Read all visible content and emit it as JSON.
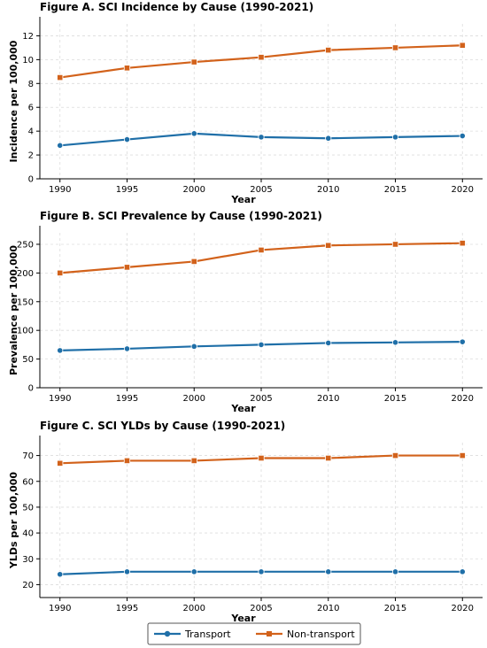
{
  "chart_data": [
    {
      "type": "line",
      "title": "Figure   A. SCI Incidence by Cause (1990-2021)",
      "xlabel": "Year",
      "ylabel": "Incidence per 100,000",
      "x": [
        1990,
        1995,
        2000,
        2005,
        2010,
        2015,
        2020
      ],
      "xticks": [
        "1990",
        "1995",
        "2000",
        "2005",
        "2010",
        "2015",
        "2020"
      ],
      "yticks": [
        "0",
        "2",
        "4",
        "6",
        "8",
        "10",
        "12"
      ],
      "ylim": [
        0,
        13
      ],
      "grid": true,
      "series": [
        {
          "name": "Transport",
          "values": [
            2.8,
            3.3,
            3.8,
            3.5,
            3.4,
            3.5,
            3.6
          ],
          "color": "#1f6fa8",
          "marker": "circle"
        },
        {
          "name": "Non-transport",
          "values": [
            8.5,
            9.3,
            9.8,
            10.2,
            10.8,
            11.0,
            11.2
          ],
          "color": "#d2621b",
          "marker": "square"
        }
      ]
    },
    {
      "type": "line",
      "title": "Figure   B. SCI Prevalence by Cause (1990-2021)",
      "xlabel": "Year",
      "ylabel": "Prevalence per 100,000",
      "x": [
        1990,
        1995,
        2000,
        2005,
        2010,
        2015,
        2020
      ],
      "xticks": [
        "1990",
        "1995",
        "2000",
        "2005",
        "2010",
        "2015",
        "2020"
      ],
      "yticks": [
        "0",
        "50",
        "100",
        "150",
        "200",
        "250"
      ],
      "ylim": [
        0,
        270
      ],
      "grid": true,
      "series": [
        {
          "name": "Transport",
          "values": [
            65,
            68,
            72,
            75,
            78,
            79,
            80
          ],
          "color": "#1f6fa8",
          "marker": "circle"
        },
        {
          "name": "Non-transport",
          "values": [
            200,
            210,
            220,
            240,
            248,
            250,
            252
          ],
          "color": "#d2621b",
          "marker": "square"
        }
      ]
    },
    {
      "type": "line",
      "title": "Figure   C. SCI YLDs by Cause (1990-2021)",
      "xlabel": "Year",
      "ylabel": "YLDs per 100,000",
      "x": [
        1990,
        1995,
        2000,
        2005,
        2010,
        2015,
        2020
      ],
      "xticks": [
        "1990",
        "1995",
        "2000",
        "2005",
        "2010",
        "2015",
        "2020"
      ],
      "yticks": [
        "20",
        "30",
        "40",
        "50",
        "60",
        "70"
      ],
      "ylim": [
        15,
        75
      ],
      "grid": true,
      "series": [
        {
          "name": "Transport",
          "values": [
            24,
            25,
            25,
            25,
            25,
            25,
            25
          ],
          "color": "#1f6fa8",
          "marker": "circle"
        },
        {
          "name": "Non-transport",
          "values": [
            67,
            68,
            68,
            69,
            69,
            70,
            70
          ],
          "color": "#d2621b",
          "marker": "square"
        }
      ]
    }
  ],
  "legend": {
    "placement": "bottom-center",
    "items": [
      {
        "label": "Transport",
        "color": "#1f6fa8",
        "marker": "circle"
      },
      {
        "label": "Non-transport",
        "color": "#d2621b",
        "marker": "square"
      }
    ]
  }
}
